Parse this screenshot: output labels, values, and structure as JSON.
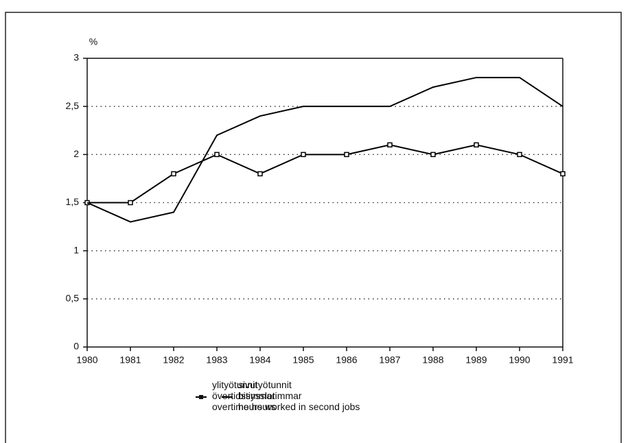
{
  "chart_data": {
    "type": "line",
    "y_label": "%",
    "categories": [
      "1980",
      "1981",
      "1982",
      "1983",
      "1984",
      "1985",
      "1986",
      "1987",
      "1988",
      "1989",
      "1990",
      "1991"
    ],
    "series": [
      {
        "name": "ylityötunnit\növertidstimmar\novertime hours",
        "color": "#000000",
        "marker": "square",
        "values": [
          1.5,
          1.5,
          1.8,
          2.0,
          1.8,
          2.0,
          2.0,
          2.1,
          2.0,
          2.1,
          2.0,
          1.8
        ]
      },
      {
        "name": "sivutyötunnit\nbisysslotimmar\nhours worked in second jobs",
        "color": "#000000",
        "marker": "none",
        "values": [
          1.5,
          1.3,
          1.4,
          2.2,
          2.4,
          2.5,
          2.5,
          2.5,
          2.7,
          2.8,
          2.8,
          2.5
        ]
      }
    ],
    "ylim": [
      0,
      3
    ],
    "yticks": [
      0,
      {
        "value": 0.5,
        "label": "0,5"
      },
      1,
      {
        "value": 1.5,
        "label": "1,5"
      },
      2,
      {
        "value": 2.5,
        "label": "2,5"
      },
      3
    ],
    "grid": true
  }
}
